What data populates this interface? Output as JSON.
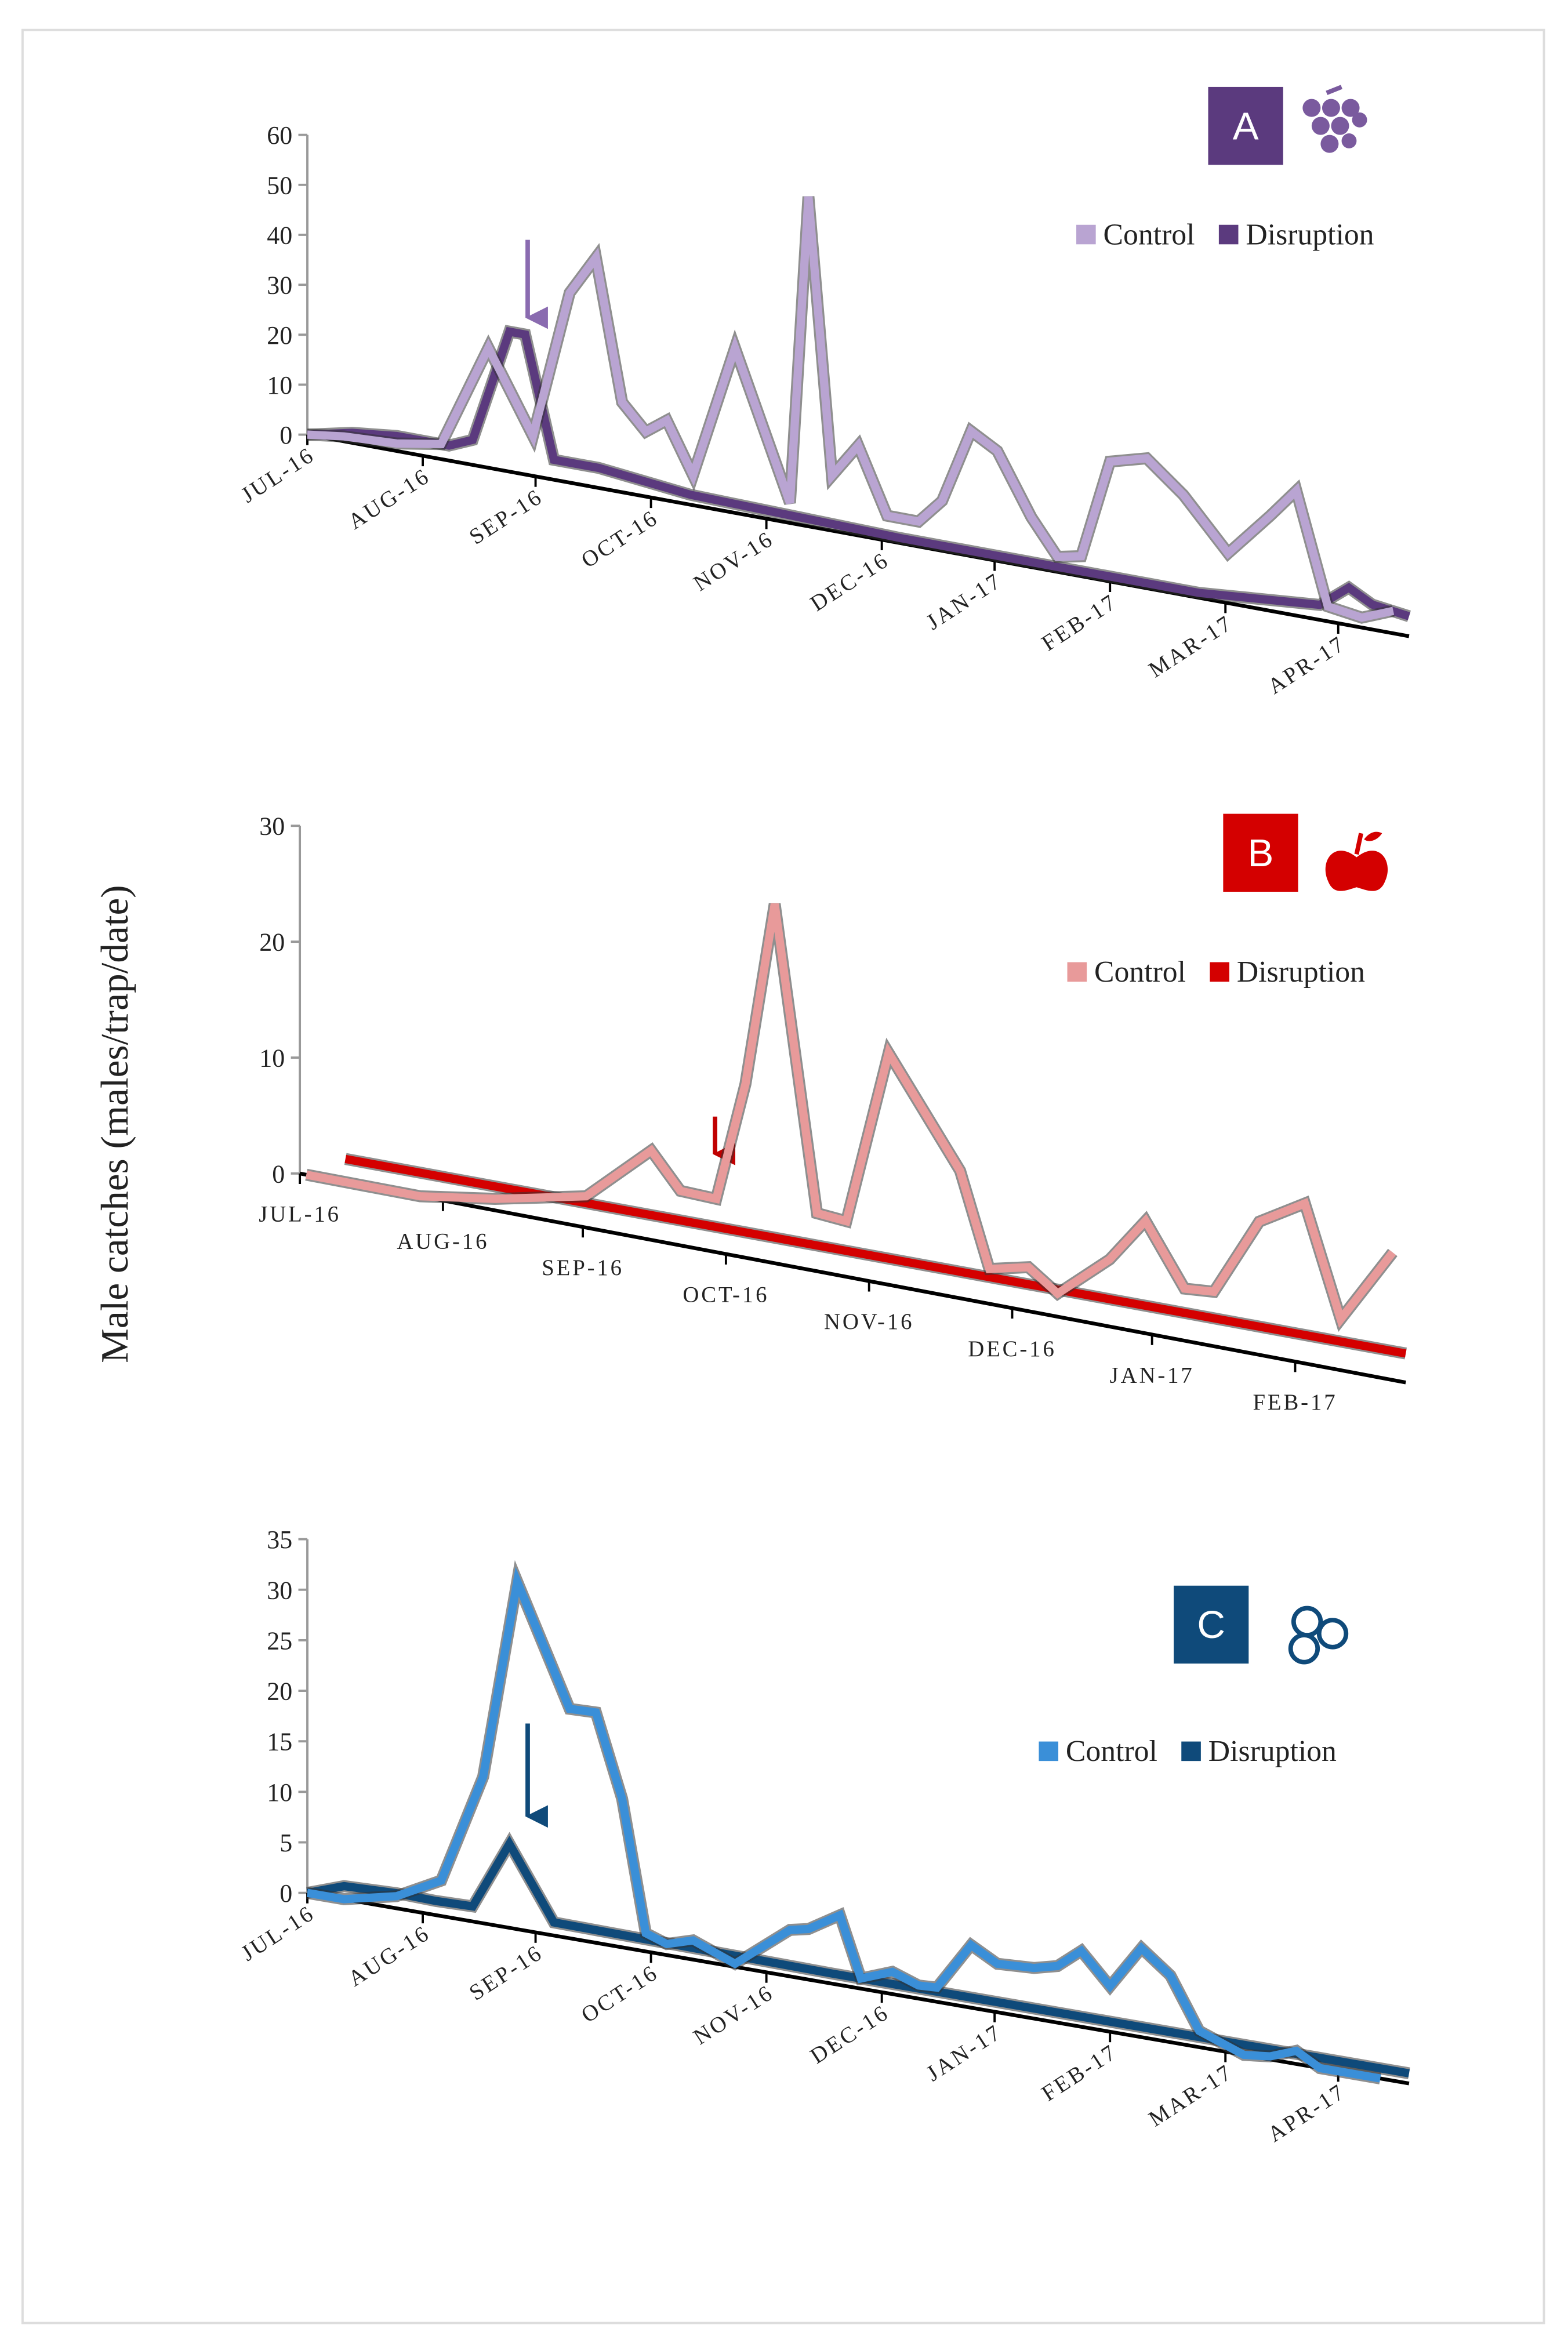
{
  "chart_data": [
    {
      "type": "line",
      "annotation": "A",
      "ylim": [
        0,
        60
      ],
      "yticks": [
        0,
        10,
        20,
        30,
        40,
        50,
        60
      ],
      "xlim": [
        0,
        42
      ],
      "xticks": [
        {
          "value": 0,
          "label": "JUL-16"
        },
        {
          "value": 4.4,
          "label": "AUG-16"
        },
        {
          "value": 8.7,
          "label": "SEP-16"
        },
        {
          "value": 13.1,
          "label": "OCT-16"
        },
        {
          "value": 17.5,
          "label": "NOV-16"
        },
        {
          "value": 21.9,
          "label": "DEC-16"
        },
        {
          "value": 26.2,
          "label": "JAN-17"
        },
        {
          "value": 30.6,
          "label": "FEB-17"
        },
        {
          "value": 35,
          "label": "MAR-17"
        },
        {
          "value": 39.3,
          "label": "APR-17"
        }
      ],
      "series": [
        {
          "name": "Control",
          "color": "#b9a4d2",
          "x": [
            0,
            1.4,
            3.4,
            5.1,
            6.9,
            8.6,
            10,
            11,
            12,
            12.9,
            13.7,
            14.7,
            16.3,
            18.4,
            19.1,
            20,
            21,
            22.1,
            23.3,
            24.2,
            25.3,
            26.3,
            27.6,
            28.6,
            29.5,
            30.6,
            32,
            33.4,
            35.1,
            36.7,
            37.7,
            38.9,
            40.2,
            41.4
          ],
          "values": [
            0,
            1,
            1.5,
            3,
            24,
            8,
            38,
            46,
            18,
            13,
            16,
            6,
            33,
            4,
            66,
            11,
            18,
            5,
            5,
            10,
            25,
            22,
            10,
            3,
            4,
            24,
            26,
            20,
            10,
            19,
            25,
            3,
            2,
            4.5
          ]
        },
        {
          "name": "Disruption",
          "color": "#5b3a7e",
          "x": [
            0,
            1.7,
            3.4,
            5.4,
            6.3,
            7.7,
            8.3,
            9.4,
            11.1,
            14.6,
            22.6,
            34,
            38.6,
            39.7,
            40.6,
            42
          ],
          "values": [
            0,
            2,
            3,
            3,
            5,
            28,
            28,
            4,
            4,
            2,
            1,
            1,
            3,
            7.5,
            5,
            4
          ]
        }
      ]
    },
    {
      "type": "line",
      "annotation": "B",
      "ylabel": "Male catches (males/trap/date)",
      "ylim": [
        0,
        30
      ],
      "yticks": [
        0,
        10,
        20,
        30
      ],
      "xlim": [
        0,
        34
      ],
      "xticks": [
        {
          "value": 0,
          "label": "JUL-16"
        },
        {
          "value": 4.4,
          "label": "AUG-16"
        },
        {
          "value": 8.7,
          "label": "SEP-16"
        },
        {
          "value": 13.1,
          "label": "OCT-16"
        },
        {
          "value": 17.5,
          "label": "NOV-16"
        },
        {
          "value": 21.9,
          "label": "DEC-16"
        },
        {
          "value": 26.2,
          "label": "JAN-17"
        },
        {
          "value": 30.6,
          "label": "FEB-17"
        }
      ],
      "series": [
        {
          "name": "Control",
          "color": "#e89a9a",
          "x": [
            0.2,
            1.8,
            3.7,
            6,
            8.8,
            10.8,
            11.7,
            12.8,
            13.7,
            14.6,
            15.9,
            16.8,
            18.1,
            20.3,
            21.2,
            22.4,
            23.3,
            24.9,
            26,
            27.2,
            28.1,
            29.5,
            30.9,
            32,
            33.6
          ],
          "values": [
            0,
            0,
            0,
            1,
            2.7,
            7.7,
            4.7,
            4.6,
            15,
            31,
            5,
            4.8,
            20,
            11,
            3,
            3.8,
            2,
            5.8,
            9.7,
            4.5,
            4.7,
            11.5,
            13.8,
            4.4,
            11
          ]
        },
        {
          "name": "Disruption",
          "color": "#d40000",
          "x": [
            1.4,
            34
          ],
          "values": [
            2,
            2.5
          ]
        }
      ]
    },
    {
      "type": "line",
      "annotation": "C",
      "ylim": [
        0,
        35
      ],
      "yticks": [
        0,
        5,
        10,
        15,
        20,
        25,
        30,
        35
      ],
      "xlim": [
        0,
        42
      ],
      "xticks": [
        {
          "value": 0,
          "label": "JUL-16"
        },
        {
          "value": 4.4,
          "label": "AUG-16"
        },
        {
          "value": 8.7,
          "label": "SEP-16"
        },
        {
          "value": 13.1,
          "label": "OCT-16"
        },
        {
          "value": 17.5,
          "label": "NOV-16"
        },
        {
          "value": 21.9,
          "label": "DEC-16"
        },
        {
          "value": 26.2,
          "label": "JAN-17"
        },
        {
          "value": 30.6,
          "label": "FEB-17"
        },
        {
          "value": 35,
          "label": "MAR-17"
        },
        {
          "value": 39.3,
          "label": "APR-17"
        }
      ],
      "series": [
        {
          "name": "Control",
          "color": "#3a8fd8",
          "x": [
            0,
            1.4,
            3.4,
            5.1,
            6.7,
            8,
            10,
            11,
            12,
            12.9,
            13.7,
            14.7,
            16.3,
            18.4,
            19.1,
            20.3,
            21.1,
            22.3,
            23.3,
            24,
            25.3,
            26.3,
            27.7,
            28.6,
            29.5,
            30.6,
            31.8,
            32.9,
            34,
            35.7,
            36.7,
            37.7,
            38.6,
            39.7,
            40.9
          ],
          "values": [
            0,
            0,
            1.2,
            3.5,
            14.5,
            34.4,
            22.7,
            22.8,
            14.7,
            1.8,
            1.1,
            1.9,
            0.3,
            4.6,
            5,
            6.9,
            1,
            2.2,
            1.3,
            1.4,
            6.2,
            4.8,
            5,
            5.6,
            7.5,
            4.5,
            8.8,
            6.6,
            1.6,
            0,
            0.3,
            1.3,
            0,
            0,
            0
          ]
        },
        {
          "name": "Disruption",
          "color": "#0f4a7a",
          "x": [
            0,
            1.4,
            3.4,
            4.9,
            6.3,
            7.7,
            9.4,
            20,
            30,
            42
          ],
          "values": [
            0,
            1.3,
            1.5,
            1.4,
            1.5,
            8.3,
            1.3,
            1,
            1,
            1
          ]
        }
      ]
    }
  ]
}
